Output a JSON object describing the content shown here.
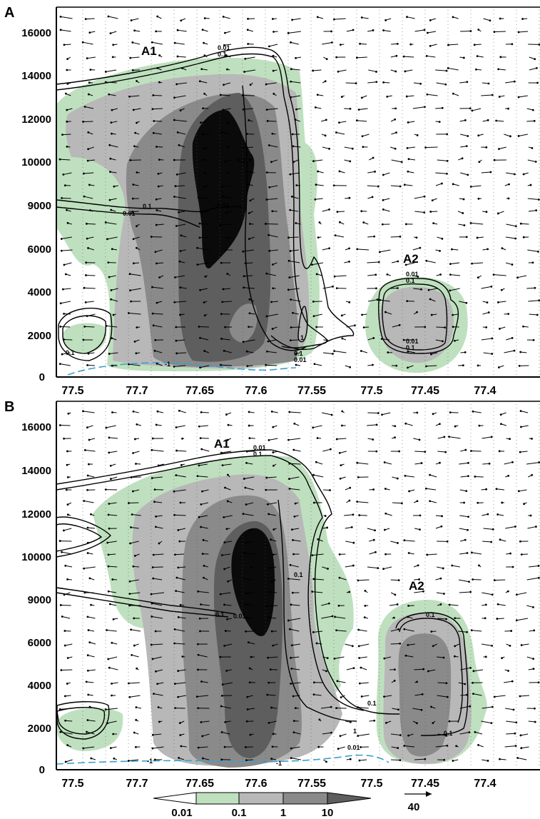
{
  "colors": {
    "green": "#bfe0bf",
    "light_gray": "#b8b8b8",
    "mid_gray": "#8a8a8a",
    "dark_gray": "#5e5e5e",
    "black": "#0a0a0a",
    "zero_line": "#3b9fd0"
  },
  "chart_data": [
    {
      "type": "contour",
      "panel_label": "A",
      "y_ticks": [
        "0",
        "2000",
        "4000",
        "6000",
        "9000",
        "10000",
        "12000",
        "14000",
        "16000"
      ],
      "x_ticks": [
        "77.5",
        "77.7",
        "77.65",
        "77.6",
        "77.55",
        "77.5",
        "77.45",
        "77.4"
      ],
      "cells": [
        "A1",
        "A2"
      ],
      "contour_labels": [
        "0.01",
        "0.1",
        "0.01",
        "0.1",
        "0.1",
        "0.01",
        "1",
        "0.1",
        "0.01",
        "-1",
        "0.1",
        "0.01",
        "0.1",
        "0.01",
        "0.1"
      ],
      "wind_vectors": "u-w wind arrows",
      "reference_vector": 40
    },
    {
      "type": "contour",
      "panel_label": "B",
      "y_ticks": [
        "0",
        "2000",
        "4000",
        "6000",
        "9000",
        "10000",
        "12000",
        "14000",
        "16000"
      ],
      "x_ticks": [
        "77.5",
        "77.7",
        "77.65",
        "77.6",
        "77.55",
        "77.5",
        "77.45",
        "77.4"
      ],
      "cells": [
        "A1",
        "A2"
      ],
      "contour_labels": [
        "0.01",
        "0.1",
        "0.1",
        "0.01",
        "0.1",
        "0.1",
        "1",
        "0.01",
        "-1",
        "-1",
        "0.1",
        "0.1"
      ],
      "wind_vectors": "u-w wind arrows",
      "reference_vector": 40
    }
  ],
  "legend": {
    "ticks": [
      "0.01",
      "0.1",
      "1",
      "10"
    ],
    "reference_vector_label": "40"
  }
}
